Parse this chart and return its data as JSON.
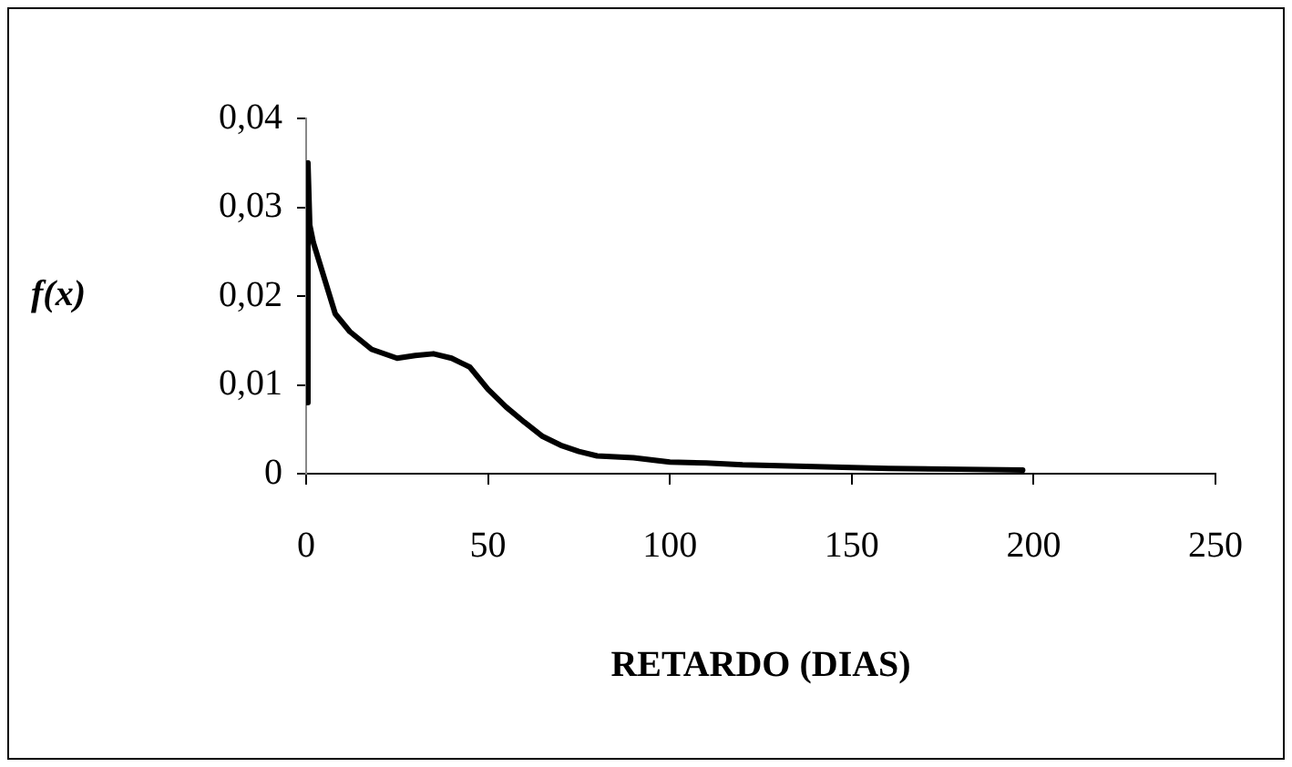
{
  "chart_data": {
    "type": "line",
    "xlabel": "RETARDO (DIAS)",
    "ylabel": "f(x)",
    "xlim": [
      0,
      250
    ],
    "xticks": [
      0,
      50,
      100,
      150,
      200,
      250
    ],
    "ylim": [
      0,
      0.04
    ],
    "yticks": [
      0,
      {
        "value": 0.01,
        "label": "0,01"
      },
      {
        "value": 0.02,
        "label": "0,02"
      },
      {
        "value": 0.03,
        "label": "0,03"
      },
      {
        "value": 0.04,
        "label": "0,04"
      }
    ],
    "grid": false,
    "legend": false,
    "marker": "none",
    "line_style": "solid",
    "series": [
      {
        "color": "#000000",
        "x": [
          0,
          0.5,
          1,
          2,
          5,
          8,
          12,
          18,
          25,
          30,
          35,
          40,
          45,
          50,
          55,
          60,
          65,
          70,
          75,
          80,
          90,
          100,
          110,
          120,
          140,
          160,
          180,
          197
        ],
        "values": [
          0.008,
          0.035,
          0.028,
          0.026,
          0.022,
          0.018,
          0.016,
          0.014,
          0.013,
          0.0133,
          0.0135,
          0.013,
          0.012,
          0.0095,
          0.0075,
          0.0058,
          0.0042,
          0.0032,
          0.0025,
          0.002,
          0.0018,
          0.0013,
          0.0012,
          0.001,
          0.0008,
          0.0006,
          0.0005,
          0.0004
        ]
      }
    ]
  }
}
